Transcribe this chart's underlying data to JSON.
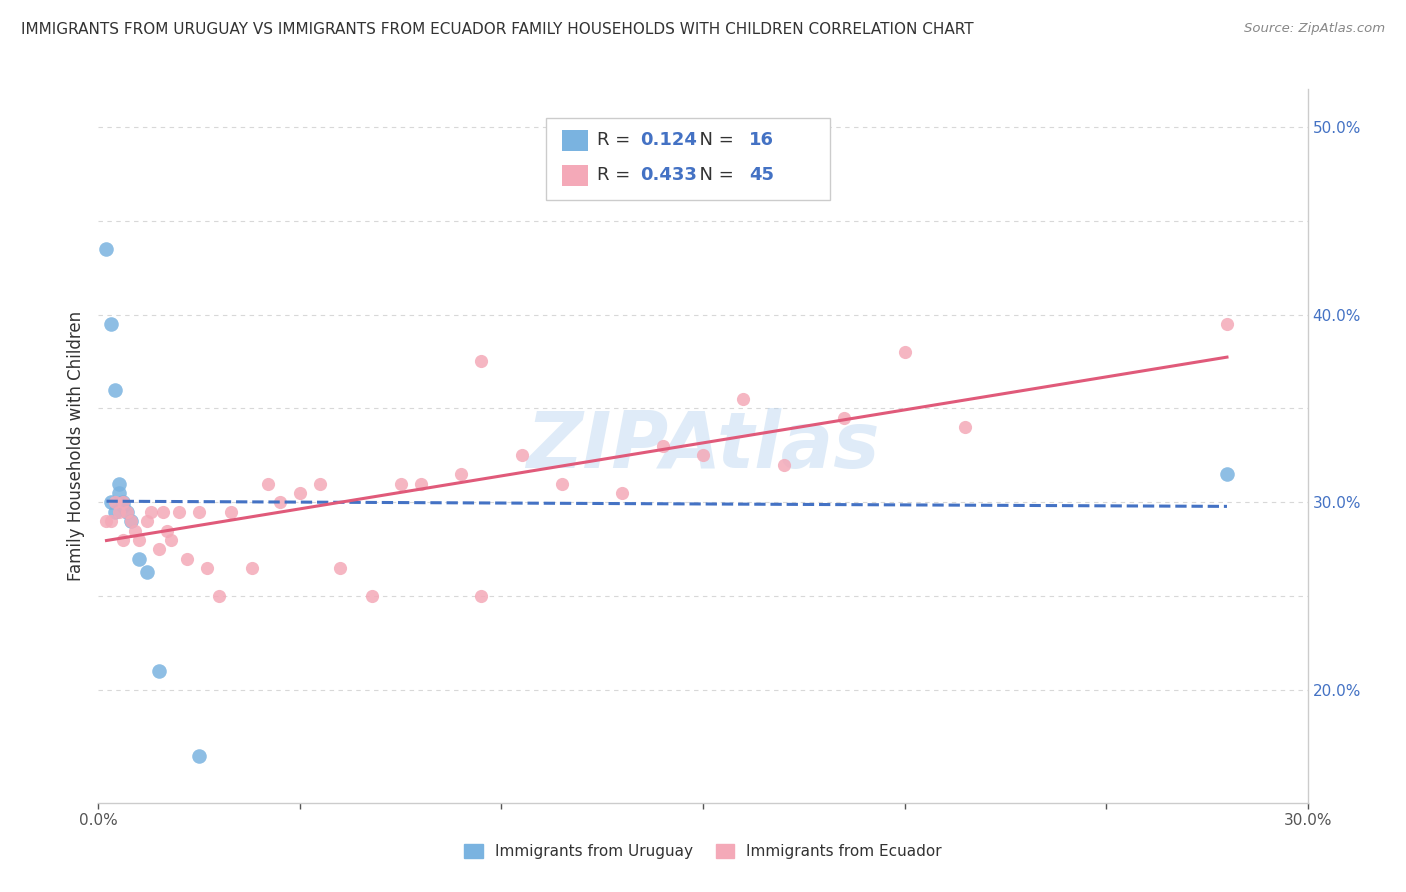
{
  "title": "IMMIGRANTS FROM URUGUAY VS IMMIGRANTS FROM ECUADOR FAMILY HOUSEHOLDS WITH CHILDREN CORRELATION CHART",
  "source": "Source: ZipAtlas.com",
  "ylabel": "Family Households with Children",
  "xlim": [
    0.0,
    0.3
  ],
  "ylim": [
    0.14,
    0.52
  ],
  "xticks": [
    0.0,
    0.05,
    0.1,
    0.15,
    0.2,
    0.25,
    0.3
  ],
  "xticklabels": [
    "0.0%",
    "",
    "",
    "",
    "",
    "",
    "30.0%"
  ],
  "yticks_right": [
    0.2,
    0.25,
    0.3,
    0.35,
    0.4,
    0.45,
    0.5
  ],
  "yticklabels_right": [
    "20.0%",
    "",
    "30.0%",
    "",
    "40.0%",
    "",
    "50.0%"
  ],
  "uruguay_color": "#7ab3e0",
  "ecuador_color": "#f4a9b8",
  "uruguay_line_color": "#4472c4",
  "ecuador_line_color": "#e05a7a",
  "R_uruguay": 0.124,
  "N_uruguay": 16,
  "R_ecuador": 0.433,
  "N_ecuador": 45,
  "watermark": "ZIPAtlas",
  "background_color": "#ffffff",
  "grid_color": "#d8d8d8",
  "uruguay_x": [
    0.002,
    0.003,
    0.004,
    0.005,
    0.005,
    0.006,
    0.007,
    0.008,
    0.01,
    0.012,
    0.015,
    0.025,
    0.28,
    0.003,
    0.004,
    0.006
  ],
  "uruguay_y": [
    0.435,
    0.395,
    0.36,
    0.31,
    0.305,
    0.3,
    0.295,
    0.29,
    0.27,
    0.263,
    0.21,
    0.165,
    0.315,
    0.3,
    0.295,
    0.298
  ],
  "ecuador_x": [
    0.002,
    0.003,
    0.004,
    0.005,
    0.006,
    0.006,
    0.007,
    0.008,
    0.009,
    0.01,
    0.012,
    0.013,
    0.015,
    0.016,
    0.017,
    0.018,
    0.02,
    0.022,
    0.025,
    0.027,
    0.03,
    0.033,
    0.038,
    0.042,
    0.045,
    0.05,
    0.055,
    0.06,
    0.068,
    0.075,
    0.08,
    0.09,
    0.095,
    0.105,
    0.115,
    0.13,
    0.14,
    0.15,
    0.16,
    0.17,
    0.185,
    0.2,
    0.215,
    0.28,
    0.095
  ],
  "ecuador_y": [
    0.29,
    0.29,
    0.3,
    0.295,
    0.3,
    0.28,
    0.295,
    0.29,
    0.285,
    0.28,
    0.29,
    0.295,
    0.275,
    0.295,
    0.285,
    0.28,
    0.295,
    0.27,
    0.295,
    0.265,
    0.25,
    0.295,
    0.265,
    0.31,
    0.3,
    0.305,
    0.31,
    0.265,
    0.25,
    0.31,
    0.31,
    0.315,
    0.375,
    0.325,
    0.31,
    0.305,
    0.33,
    0.325,
    0.355,
    0.32,
    0.345,
    0.38,
    0.34,
    0.395,
    0.25
  ],
  "legend_items": [
    {
      "label_r": "R = ",
      "r_val": "0.124",
      "label_n": "  N = ",
      "n_val": "16"
    },
    {
      "label_r": "R = ",
      "r_val": "0.433",
      "label_n": "  N = ",
      "n_val": "45"
    }
  ],
  "bottom_legend": [
    {
      "label": "Immigrants from Uruguay",
      "color": "#7ab3e0"
    },
    {
      "label": "Immigrants from Ecuador",
      "color": "#f4a9b8"
    }
  ]
}
